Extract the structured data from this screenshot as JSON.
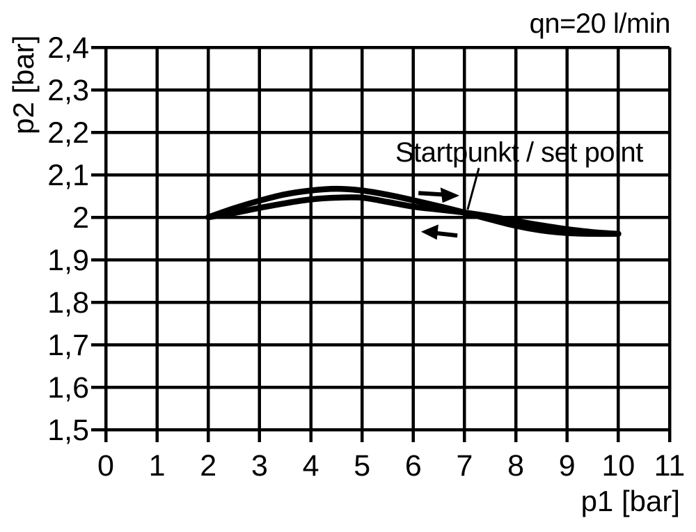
{
  "colors": {
    "foreground": "#000000",
    "background": "#ffffff"
  },
  "chart_data": {
    "type": "line",
    "title": "",
    "flow_label": "qn=20 l/min",
    "set_point_label": "Startpunkt / set point",
    "xlabel": "p1 [bar]",
    "ylabel": "p2 [bar]",
    "xlim": [
      0,
      11
    ],
    "ylim": [
      1.5,
      2.4
    ],
    "x_ticks": [
      0,
      1,
      2,
      3,
      4,
      5,
      6,
      7,
      8,
      9,
      10,
      11
    ],
    "x_tick_labels": [
      "0",
      "1",
      "2",
      "3",
      "4",
      "5",
      "6",
      "7",
      "8",
      "9",
      "10",
      "11"
    ],
    "y_ticks": [
      2.4,
      2.3,
      2.2,
      2.1,
      2.0,
      1.9,
      1.8,
      1.7,
      1.6,
      1.5
    ],
    "y_tick_labels": [
      "2,4",
      "2,3",
      "2,2",
      "2,1",
      "2",
      "1,9",
      "1,8",
      "1,7",
      "1,6",
      "1,5"
    ],
    "grid": true,
    "legend_position": "none",
    "line_color": "#000000",
    "series": [
      {
        "name": "curve-forward",
        "label": "increasing p1 (hysteresis up-branch)",
        "x": [
          2.0,
          2.5,
          3.0,
          3.5,
          4.0,
          4.5,
          5.0,
          5.5,
          6.0,
          6.5,
          7.0,
          7.5,
          8.0,
          8.5,
          9.0,
          9.5,
          10.0
        ],
        "y": [
          2.0,
          2.021,
          2.039,
          2.054,
          2.063,
          2.067,
          2.063,
          2.053,
          2.04,
          2.026,
          2.011,
          1.995,
          1.98,
          1.969,
          1.963,
          1.961,
          1.961
        ]
      },
      {
        "name": "curve-return",
        "label": "decreasing p1 (hysteresis return-branch)",
        "x": [
          2.0,
          2.5,
          3.0,
          3.5,
          4.0,
          4.5,
          5.0,
          5.5,
          6.0,
          6.5,
          7.0,
          7.5,
          8.0,
          8.5,
          9.0,
          9.5,
          10.0
        ],
        "y": [
          2.0,
          2.01,
          2.022,
          2.033,
          2.042,
          2.046,
          2.046,
          2.036,
          2.025,
          2.018,
          2.011,
          2.002,
          1.991,
          1.981,
          1.972,
          1.965,
          1.961
        ]
      }
    ],
    "annotations": {
      "set_point": {
        "p1": 7.0,
        "p2": 2.012
      },
      "set_point_leader": [
        [
          7.28,
          2.116
        ],
        [
          7.06,
          2.018
        ]
      ],
      "arrows": [
        {
          "name": "forward-direction-arrow",
          "direction": "right",
          "shaft": [
            [
              6.1,
              2.057
            ],
            [
              6.65,
              2.053
            ]
          ],
          "head": [
            [
              6.9,
              2.051
            ],
            [
              6.53,
              2.07
            ],
            [
              6.57,
              2.034
            ]
          ]
        },
        {
          "name": "return-direction-arrow",
          "direction": "left",
          "shaft": [
            [
              6.86,
              1.957
            ],
            [
              6.42,
              1.963
            ]
          ],
          "head": [
            [
              6.15,
              1.966
            ],
            [
              6.49,
              1.983
            ],
            [
              6.46,
              1.947
            ]
          ]
        }
      ]
    }
  }
}
